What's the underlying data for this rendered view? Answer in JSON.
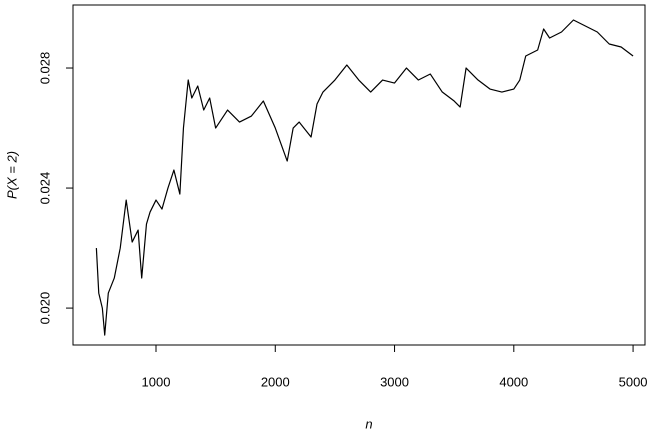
{
  "chart_data": {
    "type": "line",
    "xlabel": "n",
    "ylabel": "P(X = 2)",
    "x": [
      500,
      520,
      550,
      570,
      600,
      650,
      700,
      750,
      800,
      850,
      880,
      920,
      950,
      1000,
      1050,
      1100,
      1150,
      1200,
      1230,
      1270,
      1300,
      1350,
      1400,
      1450,
      1500,
      1600,
      1700,
      1800,
      1900,
      2000,
      2100,
      2150,
      2200,
      2300,
      2350,
      2400,
      2500,
      2600,
      2700,
      2800,
      2900,
      3000,
      3100,
      3200,
      3300,
      3400,
      3500,
      3550,
      3600,
      3700,
      3800,
      3900,
      4000,
      4050,
      4100,
      4200,
      4250,
      4300,
      4400,
      4500,
      4600,
      4700,
      4800,
      4900,
      5000
    ],
    "values": [
      0.022,
      0.0205,
      0.02,
      0.0191,
      0.0205,
      0.021,
      0.022,
      0.0236,
      0.0222,
      0.0226,
      0.021,
      0.0228,
      0.0232,
      0.0236,
      0.0233,
      0.024,
      0.0246,
      0.0238,
      0.026,
      0.0276,
      0.027,
      0.0274,
      0.0266,
      0.027,
      0.026,
      0.0266,
      0.0262,
      0.0264,
      0.0269,
      0.026,
      0.0249,
      0.026,
      0.0262,
      0.0257,
      0.0268,
      0.0272,
      0.0276,
      0.0281,
      0.0276,
      0.0272,
      0.0276,
      0.0275,
      0.028,
      0.0276,
      0.0278,
      0.0272,
      0.0269,
      0.0267,
      0.028,
      0.0276,
      0.0273,
      0.0272,
      0.0273,
      0.0276,
      0.0284,
      0.0286,
      0.0293,
      0.029,
      0.0292,
      0.0296,
      0.0294,
      0.0292,
      0.0288,
      0.0287,
      0.0284
    ],
    "color": "#000000",
    "xlim": [
      304,
      5100
    ],
    "xticks": [
      1000,
      2000,
      3000,
      4000,
      5000
    ],
    "ylim": [
      0.01877,
      0.0301
    ],
    "yticks": [
      {
        "value": 0.02,
        "label": "0.020"
      },
      {
        "value": 0.024,
        "label": "0.024"
      },
      {
        "value": 0.028,
        "label": "0.028"
      }
    ]
  }
}
